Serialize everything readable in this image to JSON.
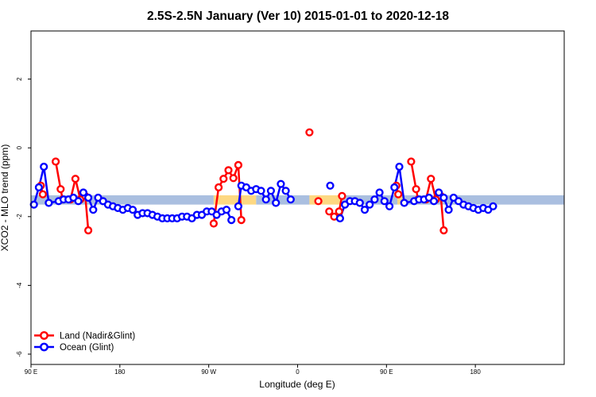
{
  "chart_data": {
    "type": "line",
    "title": "2.5S-2.5N January (Ver 10)   2015-01-01 to 2020-12-18",
    "xlabel": "Longitude (deg E)",
    "ylabel": "XCO2 - MLO trend (ppm)",
    "xlim": [
      0,
      540
    ],
    "ylim": [
      -6.3,
      3.4
    ],
    "x_ticks": [
      {
        "value": 0,
        "label": "90 E"
      },
      {
        "value": 90,
        "label": "180"
      },
      {
        "value": 180,
        "label": "90 W"
      },
      {
        "value": 270,
        "label": "0"
      },
      {
        "value": 360,
        "label": "90 E"
      },
      {
        "value": 450,
        "label": "180"
      }
    ],
    "y_ticks": [
      {
        "value": 2,
        "label": "2"
      },
      {
        "value": 0,
        "label": "0"
      },
      {
        "value": -2,
        "label": "-2"
      },
      {
        "value": -4,
        "label": "-4"
      },
      {
        "value": -6,
        "label": "-6"
      }
    ],
    "background_bands": {
      "y_range": [
        -1.65,
        -1.38
      ],
      "segments": [
        {
          "x": [
            0,
            185
          ],
          "color": "#aabfe0"
        },
        {
          "x": [
            185,
            228
          ],
          "color": "#fdd882"
        },
        {
          "x": [
            228,
            282
          ],
          "color": "#aabfe0"
        },
        {
          "x": [
            282,
            315
          ],
          "color": "#fdd882"
        },
        {
          "x": [
            315,
            371
          ],
          "color": "#aabfe0"
        },
        {
          "x": [
            371,
            378
          ],
          "color": "#fdd882"
        },
        {
          "x": [
            378,
            540
          ],
          "color": "#aabfe0"
        }
      ]
    },
    "series": [
      {
        "name": "Land (Nadir&Glint)",
        "color": "#ff0000",
        "segments": [
          [
            [
              10,
              -1.1
            ],
            [
              12,
              -1.35
            ]
          ],
          [
            [
              25,
              -0.4
            ],
            [
              30,
              -1.2
            ],
            [
              32,
              -1.5
            ],
            [
              40,
              -1.5
            ],
            [
              45,
              -0.9
            ],
            [
              50,
              -1.5
            ],
            [
              55,
              -1.4
            ],
            [
              58,
              -2.4
            ]
          ],
          [
            [
              185,
              -2.2
            ],
            [
              190,
              -1.15
            ],
            [
              195,
              -0.9
            ],
            [
              200,
              -0.65
            ],
            [
              205,
              -0.88
            ],
            [
              210,
              -0.5
            ],
            [
              213,
              -2.1
            ]
          ],
          [
            [
              282,
              0.45
            ]
          ],
          [
            [
              291,
              -1.55
            ]
          ],
          [
            [
              302,
              -1.85
            ],
            [
              307,
              -2.0
            ],
            [
              312,
              -1.85
            ],
            [
              315,
              -1.4
            ]
          ],
          [
            [
              370,
              -1.1
            ],
            [
              372,
              -1.35
            ]
          ],
          [
            [
              385,
              -0.4
            ],
            [
              390,
              -1.2
            ],
            [
              392,
              -1.5
            ],
            [
              400,
              -1.5
            ],
            [
              405,
              -0.9
            ],
            [
              410,
              -1.5
            ],
            [
              415,
              -1.4
            ],
            [
              418,
              -2.4
            ]
          ]
        ]
      },
      {
        "name": "Ocean (Glint)",
        "color": "#0000ff",
        "segments": [
          [
            [
              3,
              -1.65
            ],
            [
              8,
              -1.15
            ],
            [
              13,
              -0.55
            ],
            [
              18,
              -1.6
            ],
            [
              28,
              -1.55
            ],
            [
              33,
              -1.5
            ],
            [
              38,
              -1.5
            ],
            [
              43,
              -1.45
            ],
            [
              48,
              -1.55
            ],
            [
              53,
              -1.3
            ],
            [
              58,
              -1.45
            ],
            [
              63,
              -1.8
            ],
            [
              68,
              -1.45
            ],
            [
              73,
              -1.55
            ],
            [
              78,
              -1.65
            ],
            [
              83,
              -1.7
            ],
            [
              88,
              -1.75
            ],
            [
              93,
              -1.8
            ],
            [
              98,
              -1.75
            ],
            [
              103,
              -1.8
            ],
            [
              108,
              -1.95
            ],
            [
              113,
              -1.9
            ],
            [
              118,
              -1.9
            ],
            [
              123,
              -1.95
            ],
            [
              128,
              -2.0
            ],
            [
              133,
              -2.05
            ],
            [
              138,
              -2.05
            ],
            [
              143,
              -2.05
            ],
            [
              148,
              -2.05
            ],
            [
              153,
              -2.0
            ],
            [
              158,
              -2.0
            ],
            [
              163,
              -2.05
            ],
            [
              168,
              -1.95
            ],
            [
              173,
              -1.95
            ],
            [
              178,
              -1.85
            ],
            [
              183,
              -1.85
            ],
            [
              188,
              -1.95
            ],
            [
              193,
              -1.85
            ],
            [
              198,
              -1.8
            ],
            [
              203,
              -2.1
            ]
          ],
          [
            [
              210,
              -1.7
            ],
            [
              213,
              -1.1
            ],
            [
              218,
              -1.15
            ],
            [
              223,
              -1.25
            ],
            [
              228,
              -1.2
            ],
            [
              233,
              -1.25
            ],
            [
              238,
              -1.5
            ],
            [
              243,
              -1.25
            ],
            [
              248,
              -1.6
            ],
            [
              253,
              -1.05
            ],
            [
              258,
              -1.25
            ],
            [
              263,
              -1.5
            ]
          ],
          [
            [
              303,
              -1.1
            ]
          ],
          [
            [
              313,
              -2.05
            ],
            [
              318,
              -1.65
            ],
            [
              323,
              -1.55
            ],
            [
              328,
              -1.55
            ],
            [
              333,
              -1.6
            ],
            [
              338,
              -1.8
            ],
            [
              343,
              -1.65
            ],
            [
              348,
              -1.5
            ],
            [
              353,
              -1.3
            ],
            [
              358,
              -1.55
            ],
            [
              363,
              -1.7
            ],
            [
              368,
              -1.15
            ],
            [
              373,
              -0.55
            ],
            [
              378,
              -1.6
            ],
            [
              388,
              -1.55
            ],
            [
              393,
              -1.5
            ],
            [
              398,
              -1.5
            ],
            [
              403,
              -1.45
            ],
            [
              408,
              -1.55
            ],
            [
              413,
              -1.3
            ],
            [
              418,
              -1.45
            ],
            [
              423,
              -1.8
            ],
            [
              428,
              -1.45
            ],
            [
              433,
              -1.55
            ],
            [
              438,
              -1.65
            ],
            [
              443,
              -1.7
            ],
            [
              448,
              -1.75
            ],
            [
              453,
              -1.8
            ],
            [
              458,
              -1.75
            ],
            [
              463,
              -1.8
            ],
            [
              468,
              -1.7
            ]
          ]
        ]
      }
    ]
  }
}
